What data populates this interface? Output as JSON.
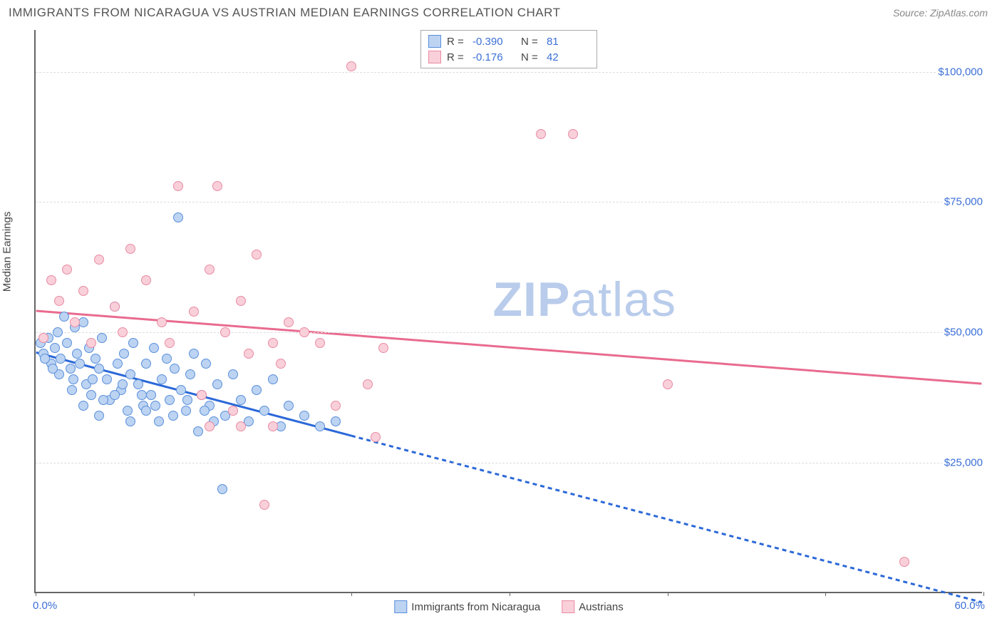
{
  "title": "IMMIGRANTS FROM NICARAGUA VS AUSTRIAN MEDIAN EARNINGS CORRELATION CHART",
  "source_prefix": "Source: ",
  "source_name": "ZipAtlas.com",
  "ylabel": "Median Earnings",
  "watermark_bold": "ZIP",
  "watermark_light": "atlas",
  "chart": {
    "type": "scatter",
    "xlim": [
      0,
      60
    ],
    "ylim": [
      0,
      108000
    ],
    "x_start_label": "0.0%",
    "x_end_label": "60.0%",
    "xtick_positions": [
      0,
      10,
      20,
      30,
      40,
      50,
      60
    ],
    "y_gridlines": [
      25000,
      50000,
      75000,
      100000
    ],
    "y_gridline_labels": [
      "$25,000",
      "$50,000",
      "$75,000",
      "$100,000"
    ],
    "grid_color": "#dddddd",
    "axis_color": "#666666",
    "background_color": "#ffffff",
    "ytick_label_color": "#3b6fd6",
    "series": [
      {
        "name": "Immigrants from Nicaragua",
        "R": "-0.390",
        "N": "81",
        "point_fill": "#bcd3f2",
        "point_stroke": "#5a8fdb",
        "line_color": "#2b68d8",
        "regression": {
          "x1": 0,
          "y1": 46000,
          "x2": 20,
          "y2": 30000,
          "dash_x2": 60,
          "dash_y2": -2000
        },
        "points": [
          [
            0.5,
            46000
          ],
          [
            0.8,
            49000
          ],
          [
            1.0,
            44000
          ],
          [
            1.2,
            47000
          ],
          [
            1.4,
            50000
          ],
          [
            1.5,
            42000
          ],
          [
            1.6,
            45000
          ],
          [
            2.0,
            48000
          ],
          [
            2.2,
            43000
          ],
          [
            2.4,
            41000
          ],
          [
            2.6,
            46000
          ],
          [
            2.8,
            44000
          ],
          [
            3.0,
            52000
          ],
          [
            3.2,
            40000
          ],
          [
            3.4,
            47000
          ],
          [
            3.5,
            38000
          ],
          [
            3.8,
            45000
          ],
          [
            4.0,
            43000
          ],
          [
            4.2,
            49000
          ],
          [
            4.5,
            41000
          ],
          [
            4.7,
            37000
          ],
          [
            5.0,
            55000
          ],
          [
            5.2,
            44000
          ],
          [
            5.4,
            39000
          ],
          [
            5.6,
            46000
          ],
          [
            5.8,
            35000
          ],
          [
            6.0,
            42000
          ],
          [
            6.2,
            48000
          ],
          [
            6.5,
            40000
          ],
          [
            6.8,
            36000
          ],
          [
            7.0,
            44000
          ],
          [
            7.3,
            38000
          ],
          [
            7.5,
            47000
          ],
          [
            7.8,
            33000
          ],
          [
            8.0,
            41000
          ],
          [
            8.3,
            45000
          ],
          [
            8.5,
            37000
          ],
          [
            8.8,
            43000
          ],
          [
            9.0,
            72000
          ],
          [
            9.2,
            39000
          ],
          [
            9.5,
            35000
          ],
          [
            9.8,
            42000
          ],
          [
            10.0,
            46000
          ],
          [
            10.3,
            31000
          ],
          [
            10.5,
            38000
          ],
          [
            10.8,
            44000
          ],
          [
            11.0,
            36000
          ],
          [
            11.5,
            40000
          ],
          [
            11.8,
            20000
          ],
          [
            12.0,
            34000
          ],
          [
            12.5,
            42000
          ],
          [
            13.0,
            37000
          ],
          [
            13.5,
            33000
          ],
          [
            14.0,
            39000
          ],
          [
            14.5,
            35000
          ],
          [
            15.0,
            41000
          ],
          [
            15.5,
            32000
          ],
          [
            16.0,
            36000
          ],
          [
            17.0,
            34000
          ],
          [
            18.0,
            32000
          ],
          [
            19.0,
            33000
          ],
          [
            3.0,
            36000
          ],
          [
            4.0,
            34000
          ],
          [
            5.0,
            38000
          ],
          [
            6.0,
            33000
          ],
          [
            7.0,
            35000
          ],
          [
            2.5,
            51000
          ],
          [
            1.8,
            53000
          ],
          [
            0.3,
            48000
          ],
          [
            0.6,
            45000
          ],
          [
            1.1,
            43000
          ],
          [
            2.3,
            39000
          ],
          [
            3.6,
            41000
          ],
          [
            4.3,
            37000
          ],
          [
            5.5,
            40000
          ],
          [
            6.7,
            38000
          ],
          [
            7.6,
            36000
          ],
          [
            8.7,
            34000
          ],
          [
            9.6,
            37000
          ],
          [
            10.7,
            35000
          ],
          [
            11.3,
            33000
          ]
        ]
      },
      {
        "name": "Austrians",
        "R": "-0.176",
        "N": "42",
        "point_fill": "#f9d0da",
        "point_stroke": "#e88ba3",
        "line_color": "#e96b8f",
        "regression": {
          "x1": 0,
          "y1": 54000,
          "x2": 60,
          "y2": 40000
        },
        "points": [
          [
            0.5,
            49000
          ],
          [
            1.0,
            60000
          ],
          [
            1.5,
            56000
          ],
          [
            2.0,
            62000
          ],
          [
            2.5,
            52000
          ],
          [
            3.0,
            58000
          ],
          [
            3.5,
            48000
          ],
          [
            4.0,
            64000
          ],
          [
            5.0,
            55000
          ],
          [
            5.5,
            50000
          ],
          [
            6.0,
            66000
          ],
          [
            7.0,
            60000
          ],
          [
            8.0,
            52000
          ],
          [
            8.5,
            48000
          ],
          [
            9.0,
            78000
          ],
          [
            10.0,
            54000
          ],
          [
            11.0,
            62000
          ],
          [
            11.5,
            78000
          ],
          [
            12.0,
            50000
          ],
          [
            13.0,
            56000
          ],
          [
            13.5,
            46000
          ],
          [
            14.0,
            65000
          ],
          [
            15.0,
            48000
          ],
          [
            15.5,
            44000
          ],
          [
            16.0,
            52000
          ],
          [
            17.0,
            50000
          ],
          [
            18.0,
            48000
          ],
          [
            19.0,
            36000
          ],
          [
            20.0,
            101000
          ],
          [
            21.0,
            40000
          ],
          [
            22.0,
            47000
          ],
          [
            21.5,
            30000
          ],
          [
            14.5,
            17000
          ],
          [
            32.0,
            88000
          ],
          [
            34.0,
            88000
          ],
          [
            15.0,
            32000
          ],
          [
            40.0,
            40000
          ],
          [
            13.0,
            32000
          ],
          [
            55.0,
            6000
          ],
          [
            12.5,
            35000
          ],
          [
            11.0,
            32000
          ],
          [
            10.5,
            38000
          ]
        ]
      }
    ]
  },
  "legend_labels": {
    "R": "R =",
    "N": "N ="
  }
}
